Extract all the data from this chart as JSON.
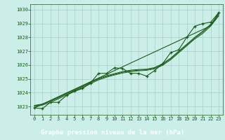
{
  "xlabel": "Graphe pression niveau de la mer (hPa)",
  "bg_color": "#cceee8",
  "label_bg_color": "#2d7a2d",
  "grid_color": "#aad4cc",
  "line_color": "#1a5c1a",
  "xlim": [
    -0.5,
    23.5
  ],
  "ylim": [
    1022.4,
    1030.4
  ],
  "yticks": [
    1023,
    1024,
    1025,
    1026,
    1027,
    1028,
    1029,
    1030
  ],
  "xticks": [
    0,
    1,
    2,
    3,
    4,
    5,
    6,
    7,
    8,
    9,
    10,
    11,
    12,
    13,
    14,
    15,
    16,
    17,
    18,
    19,
    20,
    21,
    22,
    23
  ],
  "hours": [
    0,
    1,
    2,
    3,
    4,
    5,
    6,
    7,
    8,
    9,
    10,
    11,
    12,
    13,
    14,
    15,
    16,
    17,
    18,
    19,
    20,
    21,
    22,
    23
  ],
  "measured": [
    1022.9,
    1022.85,
    1023.3,
    1023.3,
    1023.8,
    1024.1,
    1024.3,
    1024.7,
    1025.4,
    1025.4,
    1025.8,
    1025.75,
    1025.4,
    1025.4,
    1025.2,
    1025.6,
    1026.1,
    1026.9,
    1027.1,
    1028.0,
    1028.8,
    1029.0,
    1029.1,
    1029.8
  ],
  "trend_straight": [
    1022.9,
    1023.17,
    1023.44,
    1023.71,
    1023.98,
    1024.25,
    1024.52,
    1024.79,
    1025.06,
    1025.33,
    1025.6,
    1025.87,
    1026.14,
    1026.41,
    1026.68,
    1026.95,
    1027.22,
    1027.49,
    1027.76,
    1028.03,
    1028.3,
    1028.57,
    1028.84,
    1029.8
  ],
  "trend2": [
    1023.0,
    1023.1,
    1023.3,
    1023.55,
    1023.85,
    1024.1,
    1024.35,
    1024.65,
    1024.92,
    1025.12,
    1025.28,
    1025.42,
    1025.52,
    1025.58,
    1025.62,
    1025.72,
    1025.98,
    1026.38,
    1026.88,
    1027.38,
    1027.88,
    1028.28,
    1028.82,
    1029.55
  ],
  "trend3": [
    1023.05,
    1023.15,
    1023.38,
    1023.62,
    1023.92,
    1024.15,
    1024.42,
    1024.72,
    1024.98,
    1025.18,
    1025.33,
    1025.48,
    1025.58,
    1025.63,
    1025.67,
    1025.78,
    1026.05,
    1026.45,
    1026.95,
    1027.45,
    1027.95,
    1028.38,
    1028.9,
    1029.62
  ],
  "trend4": [
    1023.08,
    1023.18,
    1023.42,
    1023.67,
    1023.97,
    1024.2,
    1024.47,
    1024.77,
    1025.03,
    1025.23,
    1025.38,
    1025.53,
    1025.63,
    1025.68,
    1025.7,
    1025.82,
    1026.1,
    1026.5,
    1027.0,
    1027.5,
    1028.0,
    1028.45,
    1028.95,
    1029.68
  ]
}
